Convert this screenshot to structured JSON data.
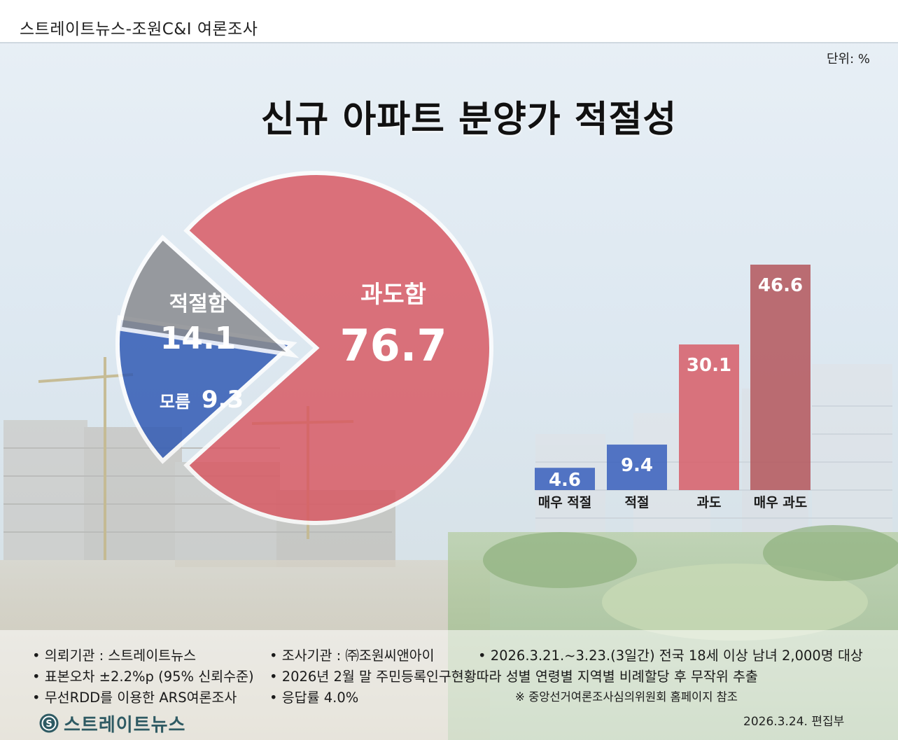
{
  "header": {
    "source": "스트레이트뉴스-조원C&I 여론조사"
  },
  "unit": "단위: %",
  "title": "신규 아파트 분양가 적절성",
  "colors": {
    "excessive": "#d95660",
    "appropriate": "#2c56b3",
    "unknown": "#8a8c90",
    "bar_appropriate": "#3e63bd",
    "bar_excessive": "#d7626c",
    "bar_very_excessive": "#b55a60"
  },
  "chart_data": [
    {
      "type": "pie",
      "categories": [
        "과도함",
        "적절함",
        "모름"
      ],
      "values": [
        76.7,
        14.1,
        9.3
      ],
      "value_labels": [
        "76.7",
        "14.1",
        "9.3"
      ],
      "title": ""
    },
    {
      "type": "bar",
      "categories": [
        "매우 적절",
        "적절",
        "과도",
        "매우 과도"
      ],
      "values": [
        4.6,
        9.4,
        30.1,
        46.6
      ],
      "value_labels": [
        "4.6",
        "9.4",
        "30.1",
        "46.6"
      ],
      "ylim": [
        0,
        46.6
      ],
      "title": ""
    }
  ],
  "footer": {
    "notes": [
      "• 의뢰기관 : 스트레이트뉴스",
      "• 조사기관 : ㈜조원씨앤아이",
      "• 2026.3.21.~3.23.(3일간) 전국 18세 이상 남녀 2,000명 대상",
      "• 표본오차 ±2.2%p (95% 신뢰수준)",
      "• 2026년 2월 말 주민등록인구현황따라 성별 연령별 지역별 비례할당 후 무작위 추출",
      "• 무선RDD를 이용한 ARS여론조사",
      "• 응답률 4.0%",
      "※ 중앙선거여론조사심의위원회 홈페이지 참조"
    ],
    "logo_text": "스트레이트뉴스",
    "logo_icon": "straight-news-logo-icon",
    "date": "2026.3.24.  편집부"
  }
}
